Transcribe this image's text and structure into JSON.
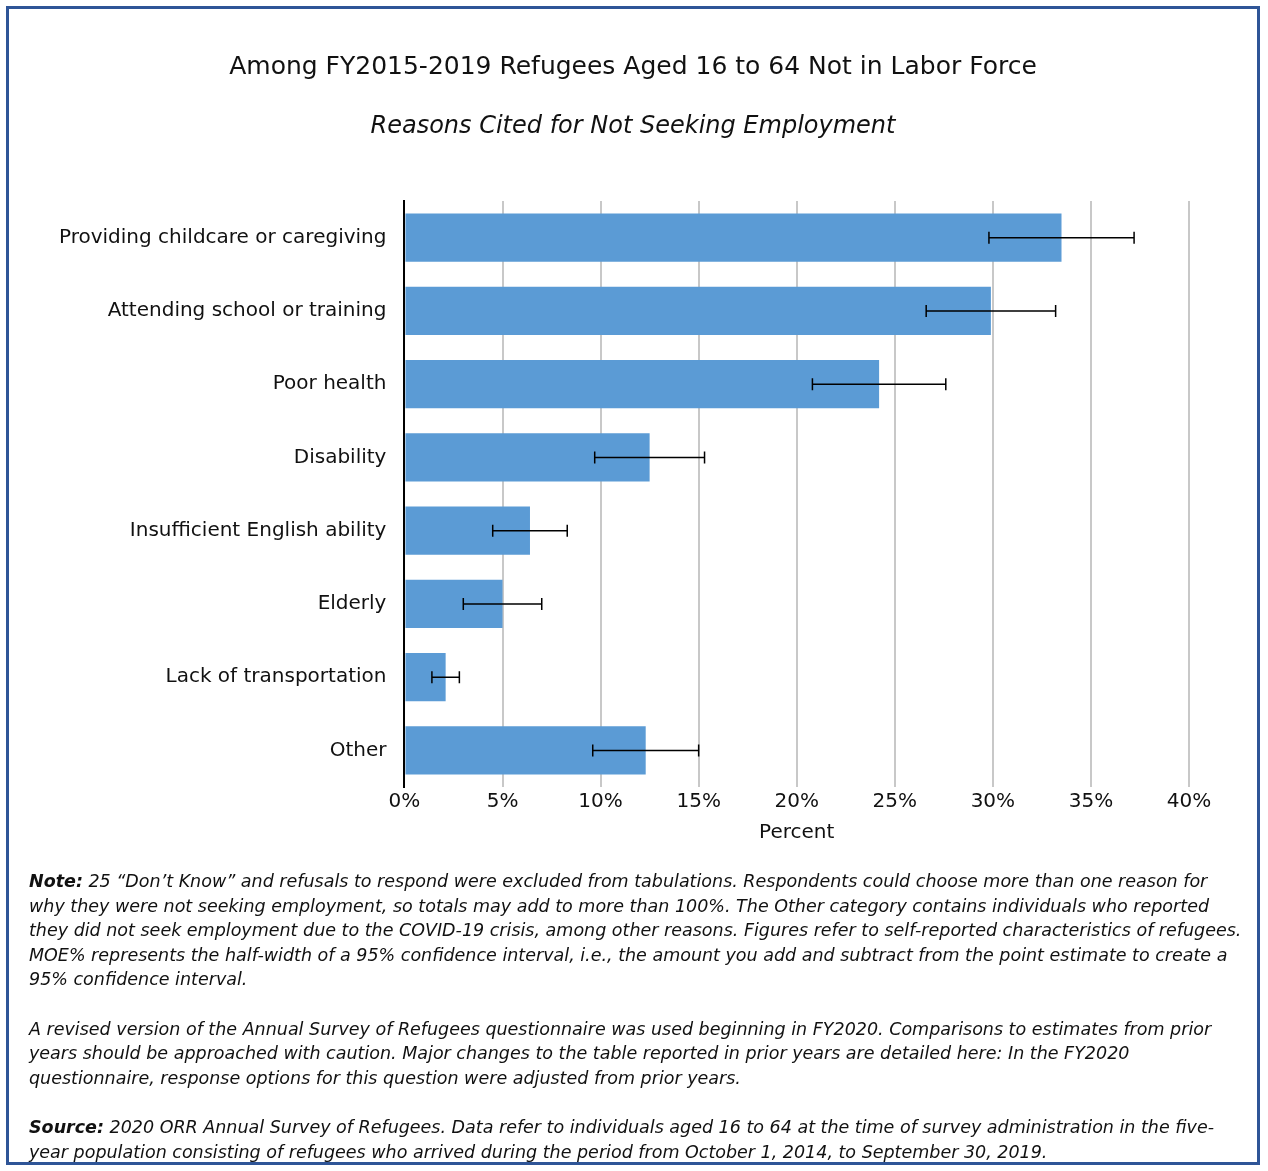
{
  "chart_data": {
    "type": "bar",
    "orientation": "horizontal",
    "title": "Among FY2015-2019 Refugees Aged 16 to 64 Not in Labor Force",
    "subtitle": "Reasons Cited for Not Seeking Employment",
    "xlabel": "Percent",
    "categories": [
      "Providing childcare or caregiving",
      "Attending school or training",
      "Poor health",
      "Disability",
      "Insufficient English ability",
      "Elderly",
      "Lack of transportation",
      "Other"
    ],
    "values": [
      33.5,
      29.9,
      24.2,
      12.5,
      6.4,
      5.0,
      2.1,
      12.3
    ],
    "errors": [
      3.7,
      3.3,
      3.4,
      2.8,
      1.9,
      2.0,
      0.7,
      2.7
    ],
    "color": "#5b9bd5",
    "xlim": [
      0,
      40
    ],
    "xticks": [
      {
        "value": 0,
        "label": "0%"
      },
      {
        "value": 5,
        "label": "5%"
      },
      {
        "value": 10,
        "label": "10%"
      },
      {
        "value": 15,
        "label": "15%"
      },
      {
        "value": 20,
        "label": "20%"
      },
      {
        "value": 25,
        "label": "25%"
      },
      {
        "value": 30,
        "label": "30%"
      },
      {
        "value": 35,
        "label": "35%"
      },
      {
        "value": 40,
        "label": "40%"
      }
    ],
    "grid": "x",
    "annotations": [
      "Note: 25 “Don’t Know” and refusals to respond were excluded from tabulations. Respondents could choose more than one reason for why they were not seeking employment, so totals may add to more than 100%. The Other category contains individuals who reported they did not seek employment due to the COVID-19 crisis, among other reasons. Figures refer to self-reported characteristics of refugees. MOE% represents the half-width of a 95% confidence interval, i.e., the amount you add and subtract from the point estimate to create a 95% confidence interval.",
      "A revised version of the Annual Survey of Refugees questionnaire was used beginning in FY2020. Comparisons to estimates from prior years should be approached with caution. Major changes to the table reported in prior years are detailed here: In the FY2020 questionnaire, response options for this question were adjusted from prior years.",
      "Source: 2020 ORR Annual Survey of Refugees. Data refer to individuals aged 16 to 64 at the time of survey administration in the five-year population consisting of refugees who arrived during the period from October 1, 2014, to September 30, 2019."
    ]
  }
}
